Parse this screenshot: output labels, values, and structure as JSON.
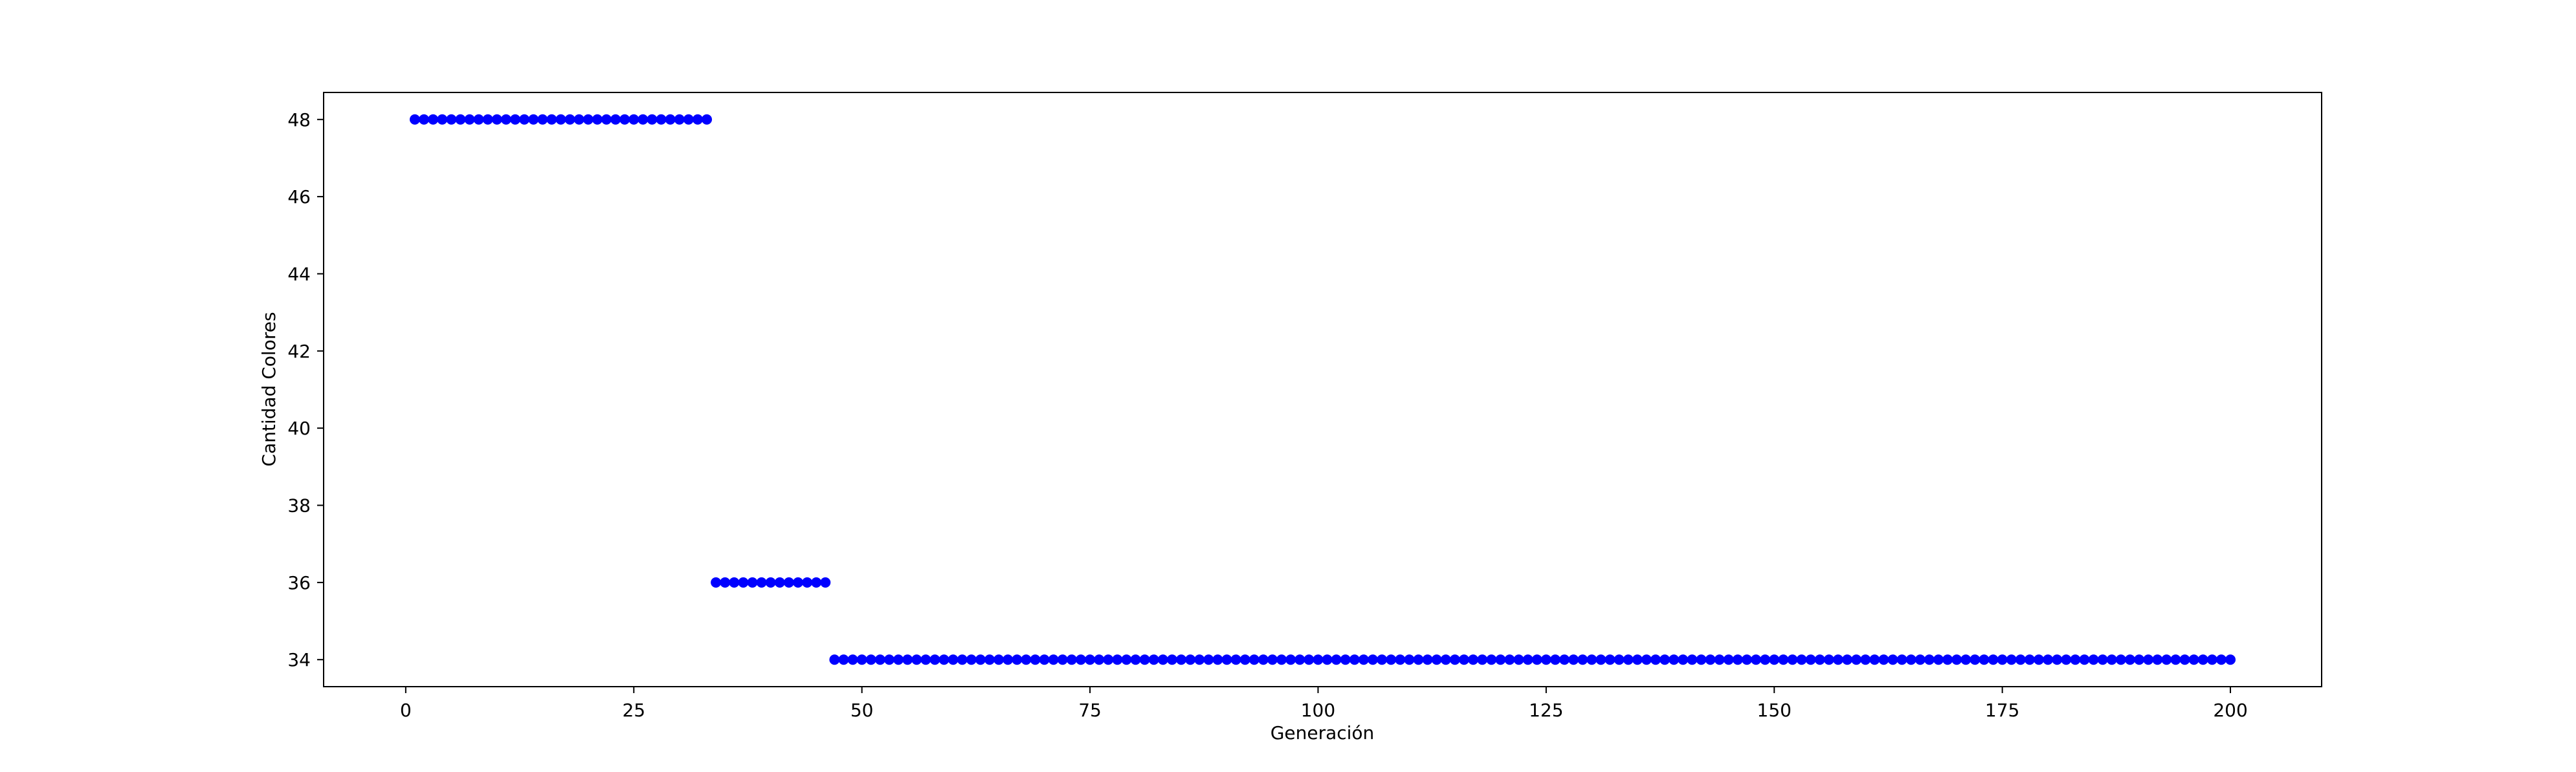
{
  "chart_data": {
    "type": "scatter",
    "title": "",
    "xlabel": "Generación",
    "ylabel": "Cantidad Colores",
    "xlim": [
      -9,
      210
    ],
    "ylim": [
      33.3,
      48.7
    ],
    "xticks": [
      0,
      25,
      50,
      75,
      100,
      125,
      150,
      175,
      200
    ],
    "yticks": [
      34,
      36,
      38,
      40,
      42,
      44,
      46,
      48
    ],
    "grid": false,
    "marker_color": "#0000ff",
    "segments": [
      {
        "x_start": 1,
        "x_end": 33,
        "y": 48
      },
      {
        "x_start": 34,
        "x_end": 46,
        "y": 36
      },
      {
        "x_start": 47,
        "x_end": 200,
        "y": 34
      }
    ]
  }
}
